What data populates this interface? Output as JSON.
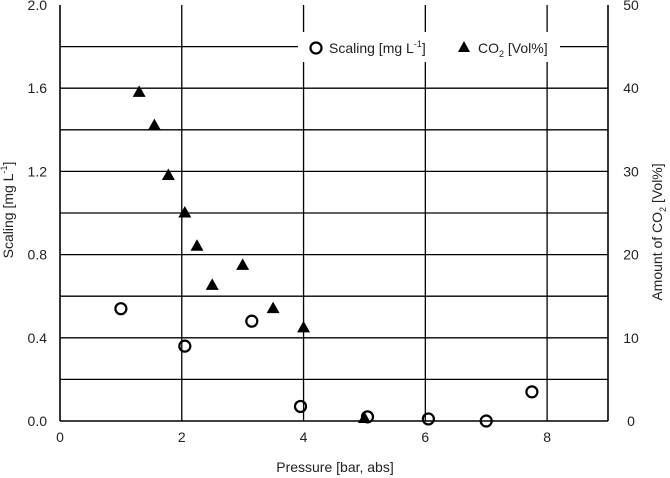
{
  "chart_data": {
    "type": "scatter",
    "title": "",
    "xlabel": "Pressure [bar, abs]",
    "ylabel_left": {
      "base": "Scaling [mg L",
      "sup": "-1",
      "tail": "]"
    },
    "ylabel_right": {
      "base": "Amount of CO",
      "sub": "2",
      "tail": " [Vol%]"
    },
    "xlim": [
      0,
      9
    ],
    "ylim_left": [
      0,
      2.0
    ],
    "ylim_right": [
      0,
      50
    ],
    "x_ticks": [
      "0",
      "2",
      "4",
      "6",
      "8"
    ],
    "y_ticks_left": [
      "0.0",
      "0.4",
      "0.8",
      "1.2",
      "1.6",
      "2.0"
    ],
    "y_ticks_right": [
      "0",
      "10",
      "20",
      "30",
      "40",
      "50"
    ],
    "grid": true,
    "legend_position": "top-right",
    "series": [
      {
        "name": {
          "base": "Scaling [mg L",
          "sup": "-1",
          "tail": "]"
        },
        "axis": "left",
        "marker": "open-circle",
        "color": "#000000",
        "x": [
          1.0,
          2.05,
          3.15,
          3.95,
          5.05,
          6.05,
          7.0,
          7.75
        ],
        "y": [
          0.54,
          0.36,
          0.48,
          0.07,
          0.02,
          0.01,
          0.0,
          0.14
        ]
      },
      {
        "name": {
          "base": "CO",
          "sub": "2",
          "tail": " [Vol%]"
        },
        "axis": "right",
        "marker": "filled-triangle",
        "color": "#000000",
        "x": [
          1.3,
          1.55,
          1.78,
          2.05,
          2.25,
          2.5,
          3.0,
          3.5,
          4.0,
          5.0
        ],
        "y": [
          39.5,
          35.5,
          29.5,
          25.0,
          21.0,
          16.3,
          18.7,
          13.5,
          11.2,
          0.3
        ]
      }
    ]
  }
}
